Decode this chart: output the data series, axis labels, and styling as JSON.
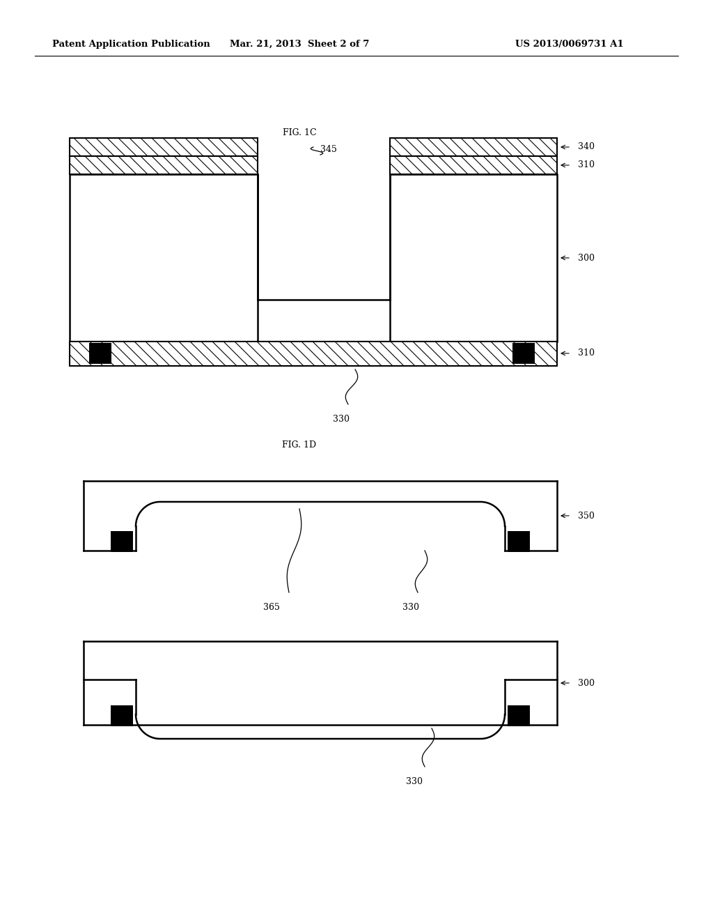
{
  "bg_color": "#ffffff",
  "header_left": "Patent Application Publication",
  "header_mid": "Mar. 21, 2013  Sheet 2 of 7",
  "header_right": "US 2013/0069731 A1",
  "fig1c_label": "FIG. 1C",
  "fig1d_label": "FIG. 1D"
}
